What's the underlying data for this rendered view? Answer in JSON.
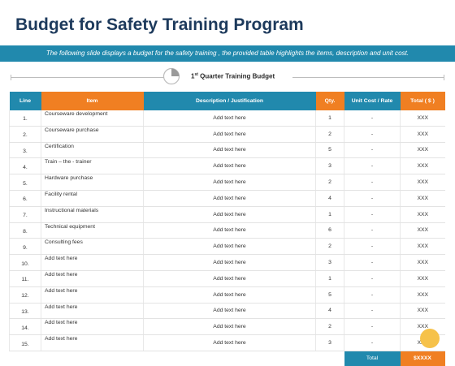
{
  "title": "Budget for Safety Training Program",
  "subtitle": "The following slide displays a budget for the safety training , the provided table highlights the items, description and unit cost.",
  "section": {
    "label_pre": "1",
    "label_sup": "st",
    "label_post": " Quarter Training Budget"
  },
  "table": {
    "headers": {
      "line": "Line",
      "item": "Item",
      "desc": "Description / Justification",
      "qty": "Qty.",
      "unit": "Unit Cost / Rate",
      "total": "Total ( $ )"
    },
    "rows": [
      {
        "line": "1.",
        "item": "Courseware development",
        "desc": "Add text here",
        "qty": "1",
        "unit": "-",
        "total": "XXX"
      },
      {
        "line": "2.",
        "item": "Courseware purchase",
        "desc": "Add text here",
        "qty": "2",
        "unit": "-",
        "total": "XXX"
      },
      {
        "line": "3.",
        "item": "Certification",
        "desc": "Add text here",
        "qty": "5",
        "unit": "-",
        "total": "XXX"
      },
      {
        "line": "4.",
        "item": "Train – the - trainer",
        "desc": "Add text here",
        "qty": "3",
        "unit": "-",
        "total": "XXX"
      },
      {
        "line": "5.",
        "item": "Hardware purchase",
        "desc": "Add text here",
        "qty": "2",
        "unit": "-",
        "total": "XXX"
      },
      {
        "line": "6.",
        "item": "Facility rental",
        "desc": "Add text here",
        "qty": "4",
        "unit": "-",
        "total": "XXX"
      },
      {
        "line": "7.",
        "item": "Instructional materials",
        "desc": "Add text here",
        "qty": "1",
        "unit": "-",
        "total": "XXX"
      },
      {
        "line": "8.",
        "item": "Technical equipment",
        "desc": "Add text here",
        "qty": "6",
        "unit": "-",
        "total": "XXX"
      },
      {
        "line": "9.",
        "item": "Consulting fees",
        "desc": "Add text here",
        "qty": "2",
        "unit": "-",
        "total": "XXX"
      },
      {
        "line": "10.",
        "item": "Add text here",
        "desc": "Add text here",
        "qty": "3",
        "unit": "-",
        "total": "XXX"
      },
      {
        "line": "11.",
        "item": "Add text here",
        "desc": "Add text here",
        "qty": "1",
        "unit": "-",
        "total": "XXX"
      },
      {
        "line": "12.",
        "item": "Add text here",
        "desc": "Add text here",
        "qty": "5",
        "unit": "-",
        "total": "XXX"
      },
      {
        "line": "13.",
        "item": "Add text here",
        "desc": "Add text here",
        "qty": "4",
        "unit": "-",
        "total": "XXX"
      },
      {
        "line": "14.",
        "item": "Add text here",
        "desc": "Add text here",
        "qty": "2",
        "unit": "-",
        "total": "XXX"
      },
      {
        "line": "15.",
        "item": "Add text here",
        "desc": "Add text here",
        "qty": "3",
        "unit": "-",
        "total": "XXX"
      }
    ],
    "total_label": "Total",
    "total_value": "$XXXX"
  },
  "colors": {
    "blue": "#2189ad",
    "orange": "#f07f22",
    "title": "#1d3a5c",
    "accent_dot": "#f6c24a"
  },
  "icons": [
    "pie-chart-icon"
  ]
}
